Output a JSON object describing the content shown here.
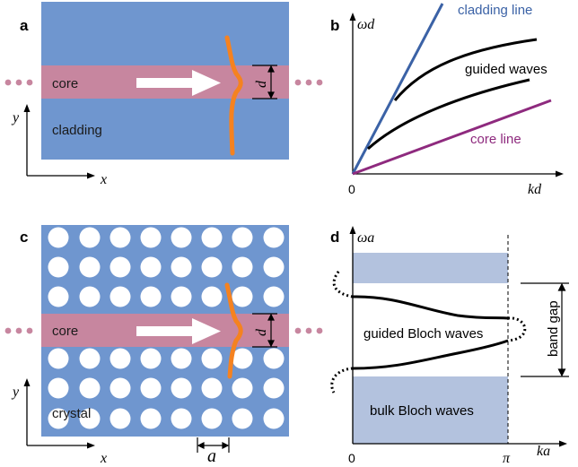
{
  "colors": {
    "cladding": "#6f96cf",
    "core": "#c7869f",
    "wave": "#f58220",
    "cladding_line": "#3b62a6",
    "core_line": "#8e2a7e",
    "band": "#b3c2de",
    "arrow": "#ffffff",
    "hole": "#ffffff"
  },
  "panel_a": {
    "label": "a",
    "core_text": "core",
    "cladding_text": "cladding",
    "d_label": "d",
    "y_axis": "y",
    "x_axis": "x"
  },
  "panel_b": {
    "label": "b",
    "y_axis": "ωd",
    "x_axis": "kd",
    "origin": "0",
    "cladding_line_label": "cladding line",
    "guided_label": "guided waves",
    "core_line_label": "core line"
  },
  "panel_c": {
    "label": "c",
    "core_text": "core",
    "crystal_text": "crystal",
    "d_label": "d",
    "a_label": "a",
    "y_axis": "y",
    "x_axis": "x"
  },
  "panel_d": {
    "label": "d",
    "y_axis": "ωa",
    "x_axis": "ka",
    "origin": "0",
    "pi_label": "π",
    "guided_label": "guided Bloch waves",
    "bulk_label": "bulk Bloch waves",
    "band_gap_label": "band gap"
  },
  "icons": [
    "right-arrow-icon",
    "dotted-continuation-icon"
  ]
}
